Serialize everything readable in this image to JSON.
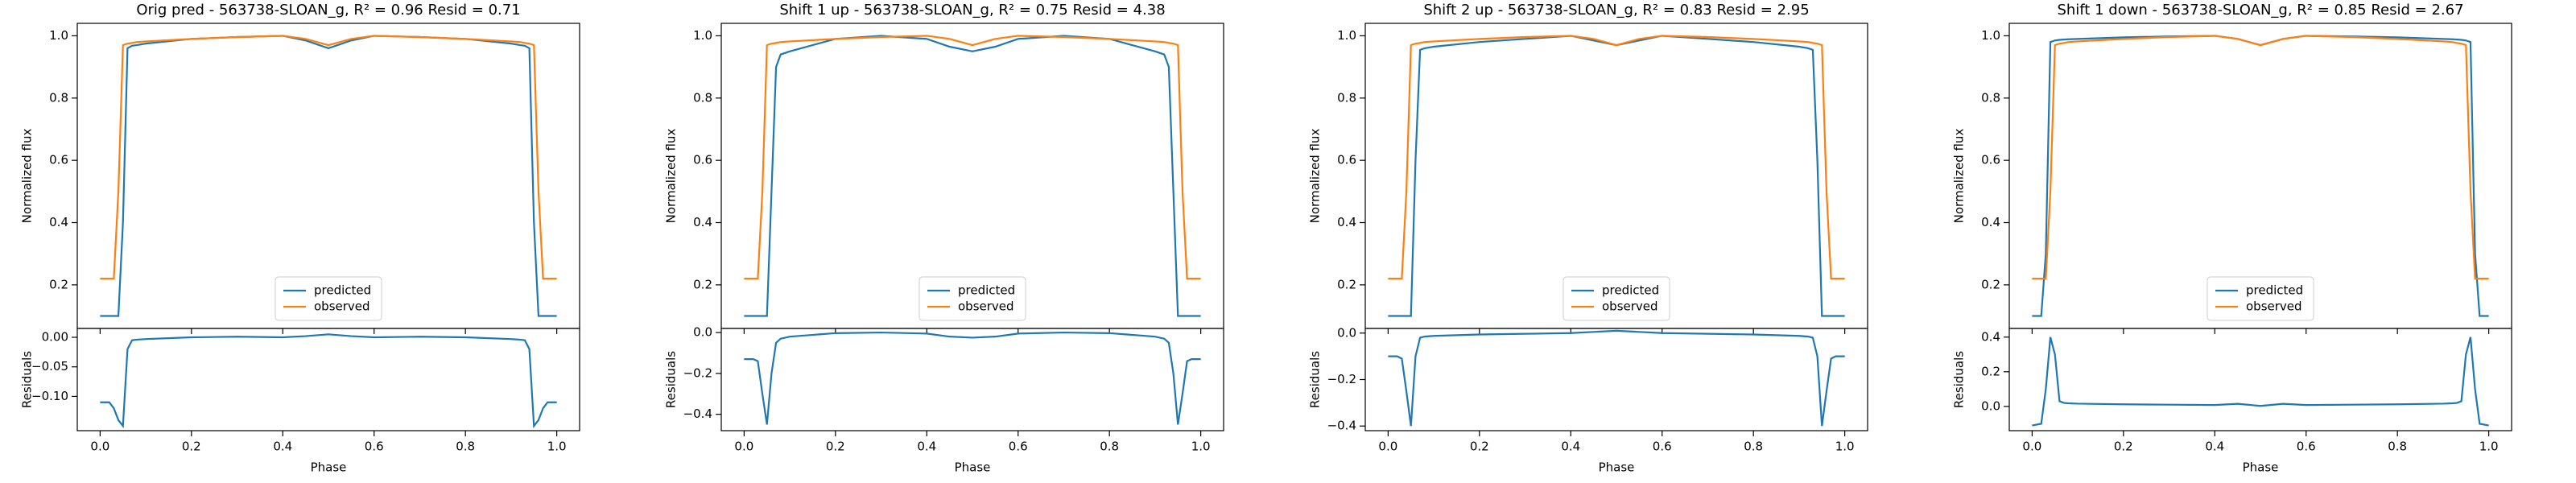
{
  "chart_data": [
    {
      "type": "line",
      "title": "Orig pred - 563738-SLOAN_g, R² = 0.96 Resid = 0.71",
      "ylabel": "Normalized flux",
      "x": [
        0,
        0.02,
        0.03,
        0.04,
        0.05,
        0.06,
        0.07,
        0.08,
        0.1,
        0.2,
        0.3,
        0.4,
        0.45,
        0.5,
        0.55,
        0.6,
        0.7,
        0.8,
        0.9,
        0.92,
        0.93,
        0.94,
        0.95,
        0.96,
        0.97,
        0.98,
        1.0
      ],
      "xlim": [
        -0.05,
        1.05
      ],
      "ylim": [
        0.06,
        1.04
      ],
      "yticks": [
        0.2,
        0.4,
        0.6,
        0.8,
        {
          "value": 1,
          "label": "1.0"
        }
      ],
      "legend": "lower center",
      "series": [
        {
          "name": "predicted",
          "color": "#1f77b4",
          "values": [
            0.1,
            0.1,
            0.1,
            0.1,
            0.4,
            0.96,
            0.968,
            0.97,
            0.975,
            0.99,
            0.996,
            1.0,
            0.985,
            0.96,
            0.985,
            1.0,
            0.996,
            0.99,
            0.975,
            0.97,
            0.968,
            0.96,
            0.4,
            0.1,
            0.1,
            0.1,
            0.1
          ]
        },
        {
          "name": "observed",
          "color": "#ff7f0e",
          "values": [
            0.22,
            0.22,
            0.22,
            0.5,
            0.97,
            0.975,
            0.977,
            0.98,
            0.982,
            0.99,
            0.996,
            1.0,
            0.99,
            0.97,
            0.99,
            1.0,
            0.996,
            0.99,
            0.982,
            0.98,
            0.977,
            0.975,
            0.97,
            0.5,
            0.22,
            0.22,
            0.22
          ]
        }
      ]
    },
    {
      "type": "line",
      "ylabel": "Residuals",
      "xlabel": "Phase",
      "x": [
        0,
        0.02,
        0.03,
        0.04,
        0.05,
        0.06,
        0.07,
        0.08,
        0.1,
        0.2,
        0.3,
        0.4,
        0.45,
        0.5,
        0.55,
        0.6,
        0.7,
        0.8,
        0.9,
        0.92,
        0.93,
        0.94,
        0.95,
        0.96,
        0.97,
        0.98,
        1.0
      ],
      "xlim": [
        -0.05,
        1.05
      ],
      "xticks": [
        {
          "value": 0,
          "label": "0.0"
        },
        0.2,
        0.4,
        0.6,
        0.8,
        {
          "value": 1,
          "label": "1.0"
        }
      ],
      "ylim": [
        -0.158,
        0.015
      ],
      "yticks": [
        {
          "value": 0,
          "label": "0.00"
        },
        {
          "value": -0.05,
          "label": "−0.05"
        },
        {
          "value": -0.1,
          "label": "−0.10"
        }
      ],
      "series": [
        {
          "color": "#1f77b4",
          "values": [
            -0.11,
            -0.11,
            -0.12,
            -0.14,
            -0.15,
            -0.02,
            -0.005,
            -0.004,
            -0.003,
            0,
            0.001,
            0,
            0.002,
            0.005,
            0.002,
            0,
            0.001,
            0,
            -0.003,
            -0.004,
            -0.005,
            -0.02,
            -0.15,
            -0.14,
            -0.12,
            -0.11,
            -0.11
          ]
        }
      ]
    },
    {
      "type": "line",
      "title": "Shift 1 up - 563738-SLOAN_g, R² = 0.75 Resid = 4.38",
      "ylabel": "Normalized flux",
      "x": [
        0,
        0.02,
        0.03,
        0.04,
        0.05,
        0.06,
        0.07,
        0.08,
        0.1,
        0.2,
        0.3,
        0.4,
        0.45,
        0.5,
        0.55,
        0.6,
        0.7,
        0.8,
        0.9,
        0.92,
        0.93,
        0.94,
        0.95,
        0.96,
        0.97,
        0.98,
        1.0
      ],
      "xlim": [
        -0.05,
        1.05
      ],
      "ylim": [
        0.06,
        1.04
      ],
      "yticks": [
        0.2,
        0.4,
        0.6,
        0.8,
        {
          "value": 1,
          "label": "1.0"
        }
      ],
      "legend": "lower center",
      "series": [
        {
          "name": "predicted",
          "color": "#1f77b4",
          "values": [
            0.1,
            0.1,
            0.1,
            0.1,
            0.1,
            0.5,
            0.9,
            0.94,
            0.95,
            0.99,
            1.0,
            0.99,
            0.965,
            0.95,
            0.965,
            0.99,
            1.0,
            0.99,
            0.95,
            0.94,
            0.9,
            0.5,
            0.1,
            0.1,
            0.1,
            0.1,
            0.1
          ]
        },
        {
          "name": "observed",
          "color": "#ff7f0e",
          "values": [
            0.22,
            0.22,
            0.22,
            0.5,
            0.97,
            0.975,
            0.977,
            0.98,
            0.982,
            0.99,
            0.996,
            1.0,
            0.99,
            0.97,
            0.99,
            1.0,
            0.996,
            0.99,
            0.982,
            0.98,
            0.977,
            0.975,
            0.97,
            0.5,
            0.22,
            0.22,
            0.22
          ]
        }
      ]
    },
    {
      "type": "line",
      "ylabel": "Residuals",
      "xlabel": "Phase",
      "x": [
        0,
        0.02,
        0.03,
        0.04,
        0.05,
        0.06,
        0.07,
        0.08,
        0.1,
        0.2,
        0.3,
        0.4,
        0.45,
        0.5,
        0.55,
        0.6,
        0.7,
        0.8,
        0.9,
        0.92,
        0.93,
        0.94,
        0.95,
        0.96,
        0.97,
        0.98,
        1.0
      ],
      "xlim": [
        -0.05,
        1.05
      ],
      "xticks": [
        {
          "value": 0,
          "label": "0.0"
        },
        0.2,
        0.4,
        0.6,
        0.8,
        {
          "value": 1,
          "label": "1.0"
        }
      ],
      "ylim": [
        -0.48,
        0.02
      ],
      "yticks": [
        {
          "value": 0,
          "label": "0.0"
        },
        {
          "value": -0.2,
          "label": "−0.2"
        },
        {
          "value": -0.4,
          "label": "−0.4"
        }
      ],
      "series": [
        {
          "color": "#1f77b4",
          "values": [
            -0.13,
            -0.13,
            -0.14,
            -0.3,
            -0.45,
            -0.2,
            -0.05,
            -0.03,
            -0.02,
            -0.003,
            0,
            -0.005,
            -0.02,
            -0.025,
            -0.02,
            -0.005,
            0,
            -0.003,
            -0.02,
            -0.03,
            -0.05,
            -0.2,
            -0.45,
            -0.3,
            -0.14,
            -0.13,
            -0.13
          ]
        }
      ]
    },
    {
      "type": "line",
      "title": "Shift 2 up - 563738-SLOAN_g, R² = 0.83 Resid = 2.95",
      "ylabel": "Normalized flux",
      "x": [
        0,
        0.02,
        0.03,
        0.04,
        0.05,
        0.06,
        0.07,
        0.08,
        0.1,
        0.2,
        0.3,
        0.4,
        0.45,
        0.5,
        0.55,
        0.6,
        0.7,
        0.8,
        0.9,
        0.92,
        0.93,
        0.94,
        0.95,
        0.96,
        0.97,
        0.98,
        1.0
      ],
      "xlim": [
        -0.05,
        1.05
      ],
      "ylim": [
        0.06,
        1.04
      ],
      "yticks": [
        0.2,
        0.4,
        0.6,
        0.8,
        {
          "value": 1,
          "label": "1.0"
        }
      ],
      "legend": "lower center",
      "series": [
        {
          "name": "predicted",
          "color": "#1f77b4",
          "values": [
            0.1,
            0.1,
            0.1,
            0.1,
            0.1,
            0.6,
            0.955,
            0.96,
            0.965,
            0.98,
            0.99,
            1.0,
            0.985,
            0.97,
            0.985,
            1.0,
            0.99,
            0.98,
            0.965,
            0.96,
            0.955,
            0.6,
            0.1,
            0.1,
            0.1,
            0.1,
            0.1
          ]
        },
        {
          "name": "observed",
          "color": "#ff7f0e",
          "values": [
            0.22,
            0.22,
            0.22,
            0.5,
            0.97,
            0.975,
            0.977,
            0.98,
            0.982,
            0.99,
            0.996,
            1.0,
            0.99,
            0.97,
            0.99,
            1.0,
            0.996,
            0.99,
            0.982,
            0.98,
            0.977,
            0.975,
            0.97,
            0.5,
            0.22,
            0.22,
            0.22
          ]
        }
      ]
    },
    {
      "type": "line",
      "ylabel": "Residuals",
      "xlabel": "Phase",
      "x": [
        0,
        0.02,
        0.03,
        0.04,
        0.05,
        0.06,
        0.07,
        0.08,
        0.1,
        0.2,
        0.3,
        0.4,
        0.45,
        0.5,
        0.55,
        0.6,
        0.7,
        0.8,
        0.9,
        0.92,
        0.93,
        0.94,
        0.95,
        0.96,
        0.97,
        0.98,
        1.0
      ],
      "xlim": [
        -0.05,
        1.05
      ],
      "xticks": [
        {
          "value": 0,
          "label": "0.0"
        },
        0.2,
        0.4,
        0.6,
        0.8,
        {
          "value": 1,
          "label": "1.0"
        }
      ],
      "ylim": [
        -0.42,
        0.02
      ],
      "yticks": [
        {
          "value": 0,
          "label": "0.0"
        },
        {
          "value": -0.2,
          "label": "−0.2"
        },
        {
          "value": -0.4,
          "label": "−0.4"
        }
      ],
      "series": [
        {
          "color": "#1f77b4",
          "values": [
            -0.1,
            -0.1,
            -0.11,
            -0.25,
            -0.4,
            -0.1,
            -0.02,
            -0.015,
            -0.012,
            -0.006,
            -0.003,
            0,
            0.005,
            0.01,
            0.005,
            0,
            -0.003,
            -0.006,
            -0.012,
            -0.015,
            -0.02,
            -0.1,
            -0.4,
            -0.25,
            -0.11,
            -0.1,
            -0.1
          ]
        }
      ]
    },
    {
      "type": "line",
      "title": "Shift 1 down - 563738-SLOAN_g, R² = 0.85 Resid = 2.67",
      "ylabel": "Normalized flux",
      "x": [
        0,
        0.02,
        0.03,
        0.04,
        0.05,
        0.06,
        0.07,
        0.08,
        0.1,
        0.2,
        0.3,
        0.4,
        0.45,
        0.5,
        0.55,
        0.6,
        0.7,
        0.8,
        0.9,
        0.92,
        0.93,
        0.94,
        0.95,
        0.96,
        0.97,
        0.98,
        1.0
      ],
      "xlim": [
        -0.05,
        1.05
      ],
      "ylim": [
        0.06,
        1.04
      ],
      "yticks": [
        0.2,
        0.4,
        0.6,
        0.8,
        {
          "value": 1,
          "label": "1.0"
        }
      ],
      "legend": "lower center",
      "series": [
        {
          "name": "predicted",
          "color": "#1f77b4",
          "values": [
            0.1,
            0.1,
            0.3,
            0.98,
            0.985,
            0.987,
            0.988,
            0.989,
            0.99,
            0.995,
            0.998,
            1.0,
            0.99,
            0.97,
            0.99,
            1.0,
            0.998,
            0.995,
            0.99,
            0.989,
            0.988,
            0.987,
            0.985,
            0.98,
            0.3,
            0.1,
            0.1
          ]
        },
        {
          "name": "observed",
          "color": "#ff7f0e",
          "values": [
            0.22,
            0.22,
            0.22,
            0.5,
            0.97,
            0.975,
            0.977,
            0.98,
            0.982,
            0.99,
            0.996,
            1.0,
            0.99,
            0.97,
            0.99,
            1.0,
            0.996,
            0.99,
            0.982,
            0.98,
            0.977,
            0.975,
            0.97,
            0.5,
            0.22,
            0.22,
            0.22
          ]
        }
      ]
    },
    {
      "type": "line",
      "ylabel": "Residuals",
      "xlabel": "Phase",
      "x": [
        0,
        0.02,
        0.03,
        0.04,
        0.05,
        0.06,
        0.07,
        0.08,
        0.1,
        0.2,
        0.3,
        0.4,
        0.45,
        0.5,
        0.55,
        0.6,
        0.7,
        0.8,
        0.9,
        0.92,
        0.93,
        0.94,
        0.95,
        0.96,
        0.97,
        0.98,
        1.0
      ],
      "xlim": [
        -0.05,
        1.05
      ],
      "xticks": [
        {
          "value": 0,
          "label": "0.0"
        },
        0.2,
        0.4,
        0.6,
        0.8,
        {
          "value": 1,
          "label": "1.0"
        }
      ],
      "ylim": [
        -0.14,
        0.45
      ],
      "yticks": [
        {
          "value": 0,
          "label": "0.0"
        },
        0.2,
        0.4
      ],
      "series": [
        {
          "color": "#1f77b4",
          "values": [
            -0.11,
            -0.1,
            0.1,
            0.4,
            0.3,
            0.03,
            0.02,
            0.018,
            0.016,
            0.012,
            0.01,
            0.008,
            0.015,
            0.003,
            0.015,
            0.008,
            0.01,
            0.012,
            0.016,
            0.018,
            0.02,
            0.03,
            0.3,
            0.4,
            0.1,
            -0.1,
            -0.11
          ]
        }
      ]
    }
  ]
}
